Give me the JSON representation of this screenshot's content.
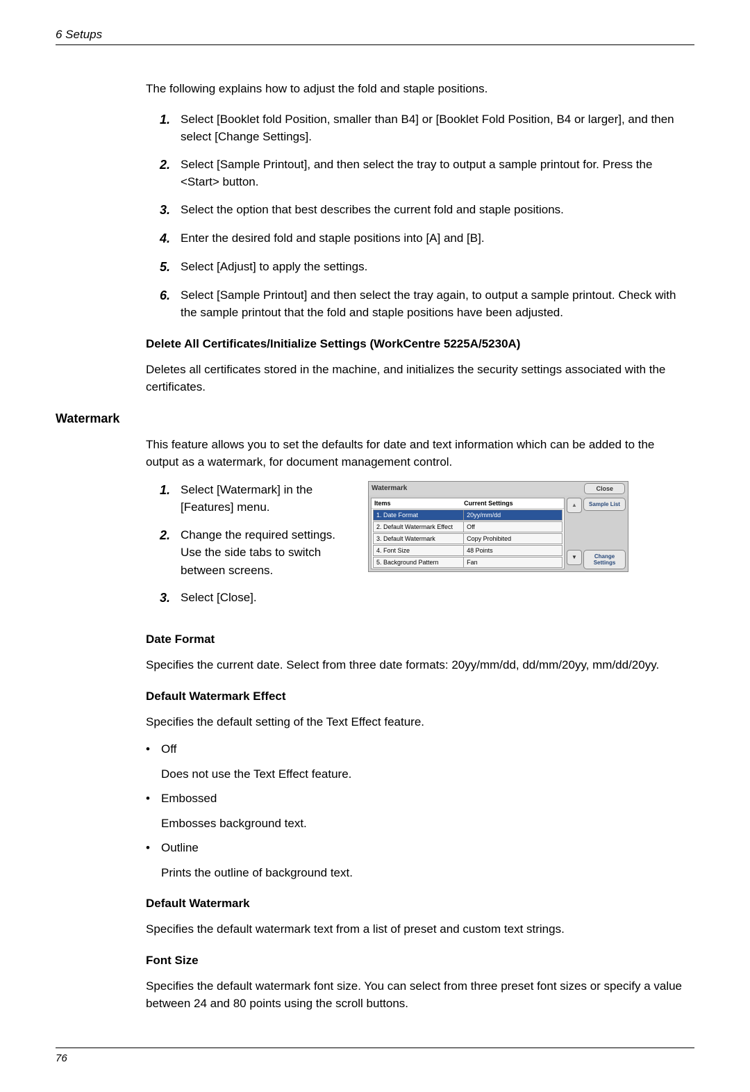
{
  "header": {
    "chapter": "6  Setups"
  },
  "intro": "The following explains how to adjust the fold and staple positions.",
  "steps_main": [
    "Select [Booklet fold Position, smaller than B4] or [Booklet Fold Position, B4 or larger], and then select [Change Settings].",
    "Select [Sample Printout], and then select the tray to output a sample printout for. Press the <Start> button.",
    "Select the option that best describes the current fold and staple positions.",
    "Enter the desired fold and staple positions into [A] and [B].",
    "Select [Adjust] to apply the settings.",
    "Select [Sample Printout] and then select the tray again, to output a sample printout. Check with the sample printout that the fold and staple positions have been adjusted."
  ],
  "delete_certs": {
    "heading": "Delete All Certificates/Initialize Settings (WorkCentre 5225A/5230A)",
    "text": "Deletes all certificates stored in the machine, and initializes the security settings associated with the certificates."
  },
  "watermark": {
    "heading": "Watermark",
    "intro": "This feature allows you to set the defaults for date and text information which can be added to the output as a watermark, for document management control.",
    "steps": [
      "Select [Watermark] in the [Features] menu.",
      "Change the required settings. Use the side tabs to switch between screens.",
      "Select [Close]."
    ]
  },
  "screenshot": {
    "title": "Watermark",
    "close_label": "Close",
    "header_items": "Items",
    "header_settings": "Current Settings",
    "rows": [
      {
        "item": "1. Date Format",
        "setting": "20yy/mm/dd",
        "selected": true
      },
      {
        "item": "2. Default Watermark Effect",
        "setting": "Off",
        "selected": false
      },
      {
        "item": "3. Default Watermark",
        "setting": "Copy Prohibited",
        "selected": false
      },
      {
        "item": "4. Font Size",
        "setting": "48 Points",
        "selected": false
      },
      {
        "item": "5. Background Pattern",
        "setting": "Fan",
        "selected": false
      }
    ],
    "sample_list_label": "Sample List",
    "change_settings_label": "Change Settings",
    "scroll_up": "▲",
    "scroll_down": "▼"
  },
  "date_format": {
    "heading": "Date Format",
    "text": "Specifies the current date. Select from three date formats: 20yy/mm/dd, dd/mm/20yy, mm/dd/20yy."
  },
  "default_effect": {
    "heading": "Default Watermark Effect",
    "intro": "Specifies the default setting of the Text Effect feature.",
    "bullets": [
      {
        "label": "Off",
        "desc": "Does not use the Text Effect feature."
      },
      {
        "label": "Embossed",
        "desc": "Embosses background text."
      },
      {
        "label": "Outline",
        "desc": "Prints the outline of background text."
      }
    ]
  },
  "default_watermark": {
    "heading": "Default Watermark",
    "text": "Specifies the default watermark text from a list of preset and custom text strings."
  },
  "font_size": {
    "heading": "Font Size",
    "text": "Specifies the default watermark font size. You can select from three preset font sizes or specify a value between 24 and 80 points using the scroll buttons."
  },
  "footer": {
    "page": "76"
  }
}
